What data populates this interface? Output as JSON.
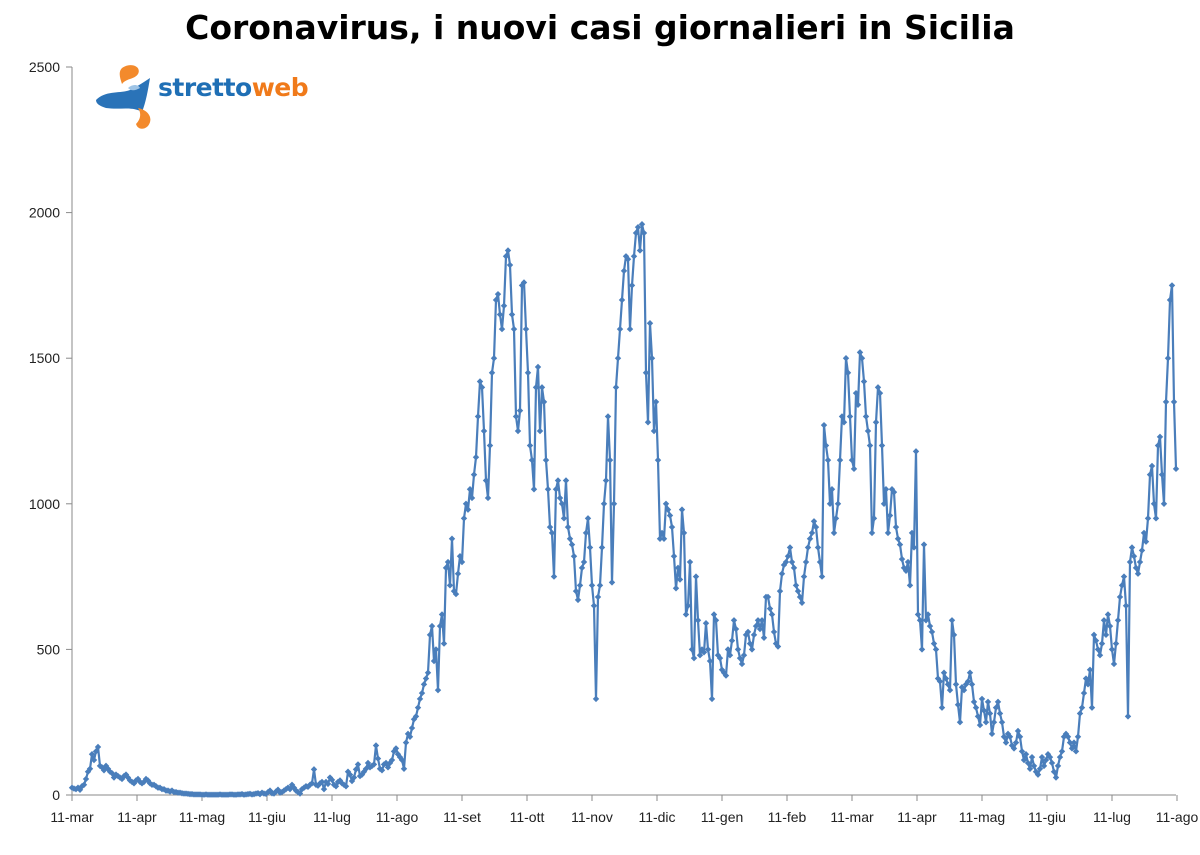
{
  "logo": {
    "text_a": "stretto",
    "text_b": "web",
    "color_a": "#1f6fb5",
    "color_b": "#f07a1a"
  },
  "chart_data": {
    "type": "line",
    "title": "Coronavirus, i nuovi casi giornalieri in Sicilia",
    "xlabel": "",
    "ylabel": "",
    "ylim": [
      0,
      2500
    ],
    "yticks": [
      0,
      500,
      1000,
      1500,
      2000,
      2500
    ],
    "x_ticks": [
      "11-mar",
      "11-apr",
      "11-mag",
      "11-giu",
      "11-lug",
      "11-ago",
      "11-set",
      "11-ott",
      "11-nov",
      "11-dic",
      "11-gen",
      "11-feb",
      "11-mar",
      "11-apr",
      "11-mag",
      "11-giu",
      "11-lug",
      "11-ago"
    ],
    "grid": false,
    "legend": false,
    "marker": "diamond",
    "line_color": "#4a7ebb",
    "series": [
      {
        "values": [
          25,
          22,
          20,
          25,
          18,
          30,
          35,
          55,
          80,
          90,
          140,
          120,
          150,
          165,
          100,
          95,
          85,
          100,
          90,
          80,
          75,
          60,
          70,
          65,
          60,
          55,
          65,
          70,
          60,
          50,
          45,
          40,
          50,
          55,
          45,
          40,
          45,
          55,
          50,
          40,
          35,
          35,
          30,
          25,
          25,
          20,
          20,
          15,
          15,
          12,
          15,
          10,
          10,
          8,
          8,
          6,
          5,
          5,
          4,
          3,
          3,
          2,
          2,
          2,
          2,
          1,
          1,
          2,
          1,
          1,
          1,
          1,
          1,
          1,
          2,
          1,
          1,
          1,
          1,
          2,
          2,
          1,
          1,
          2,
          2,
          3,
          1,
          2,
          3,
          4,
          2,
          3,
          5,
          6,
          3,
          8,
          5,
          4,
          10,
          15,
          6,
          5,
          12,
          18,
          8,
          10,
          15,
          20,
          25,
          20,
          35,
          25,
          15,
          10,
          5,
          20,
          25,
          30,
          28,
          35,
          40,
          88,
          35,
          32,
          40,
          45,
          20,
          45,
          38,
          60,
          52,
          35,
          30,
          45,
          50,
          40,
          35,
          30,
          80,
          70,
          48,
          60,
          88,
          105,
          65,
          70,
          80,
          90,
          110,
          95,
          100,
          105,
          170,
          125,
          90,
          85,
          105,
          110,
          95,
          110,
          120,
          150,
          160,
          140,
          130,
          120,
          90,
          180,
          210,
          200,
          230,
          260,
          270,
          300,
          330,
          350,
          380,
          400,
          420,
          550,
          580,
          460,
          500,
          360,
          580,
          620,
          520,
          780,
          800,
          720,
          880,
          700,
          690,
          760,
          820,
          800,
          950,
          1000,
          980,
          1050,
          1020,
          1100,
          1160,
          1300,
          1420,
          1400,
          1250,
          1080,
          1020,
          1200,
          1450,
          1500,
          1700,
          1720,
          1650,
          1600,
          1680,
          1850,
          1870,
          1820,
          1650,
          1600,
          1300,
          1250,
          1320,
          1750,
          1760,
          1600,
          1450,
          1200,
          1150,
          1050,
          1400,
          1470,
          1250,
          1400,
          1350,
          1150,
          1050,
          920,
          900,
          750,
          1050,
          1080,
          1020,
          1000,
          950,
          1080,
          920,
          880,
          860,
          820,
          700,
          670,
          720,
          780,
          800,
          900,
          950,
          850,
          720,
          650,
          330,
          680,
          720,
          850,
          1000,
          1080,
          1300,
          1150,
          730,
          1000,
          1400,
          1500,
          1600,
          1700,
          1800,
          1850,
          1840,
          1600,
          1750,
          1850,
          1930,
          1950,
          1870,
          1960,
          1930,
          1450,
          1280,
          1620,
          1500,
          1250,
          1350,
          1150,
          880,
          900,
          880,
          1000,
          980,
          960,
          920,
          820,
          710,
          780,
          740,
          980,
          900,
          620,
          650,
          800,
          500,
          470,
          750,
          600,
          480,
          500,
          490,
          590,
          500,
          460,
          330,
          620,
          600,
          480,
          470,
          430,
          420,
          410,
          500,
          480,
          530,
          600,
          570,
          500,
          470,
          450,
          480,
          550,
          560,
          520,
          500,
          550,
          580,
          600,
          570,
          600,
          540,
          680,
          680,
          640,
          620,
          560,
          520,
          510,
          700,
          760,
          790,
          800,
          820,
          850,
          800,
          780,
          720,
          700,
          680,
          660,
          750,
          800,
          850,
          880,
          900,
          940,
          920,
          850,
          800,
          750,
          1270,
          1200,
          1150,
          1000,
          1050,
          900,
          950,
          1000,
          1150,
          1300,
          1280,
          1500,
          1450,
          1300,
          1150,
          1120,
          1380,
          1340,
          1520,
          1500,
          1420,
          1300,
          1250,
          1200,
          900,
          950,
          1280,
          1400,
          1380,
          1200,
          1000,
          1050,
          900,
          960,
          1050,
          1040,
          920,
          880,
          860,
          810,
          780,
          770,
          800,
          720,
          900,
          850,
          1180,
          620,
          600,
          500,
          860,
          600,
          620,
          580,
          560,
          520,
          500,
          400,
          390,
          300,
          420,
          400,
          380,
          360,
          600,
          550,
          380,
          310,
          250,
          370,
          360,
          380,
          390,
          420,
          380,
          320,
          300,
          270,
          240,
          330,
          290,
          250,
          320,
          280,
          210,
          250,
          300,
          320,
          280,
          250,
          200,
          180,
          210,
          200,
          170,
          160,
          180,
          220,
          200,
          150,
          120,
          140,
          110,
          90,
          130,
          100,
          80,
          70,
          90,
          130,
          100,
          120,
          140,
          130,
          110,
          80,
          60,
          100,
          130,
          150,
          200,
          210,
          200,
          180,
          160,
          180,
          150,
          200,
          280,
          300,
          350,
          400,
          380,
          430,
          300,
          550,
          530,
          500,
          480,
          520,
          600,
          550,
          620,
          580,
          500,
          450,
          520,
          600,
          680,
          720,
          750,
          650,
          270,
          800,
          850,
          820,
          780,
          760,
          800,
          840,
          900,
          870,
          950,
          1100,
          1130,
          1000,
          950,
          1200,
          1230,
          1100,
          1000,
          1350,
          1500,
          1700,
          1750,
          1350,
          1120
        ]
      }
    ]
  }
}
